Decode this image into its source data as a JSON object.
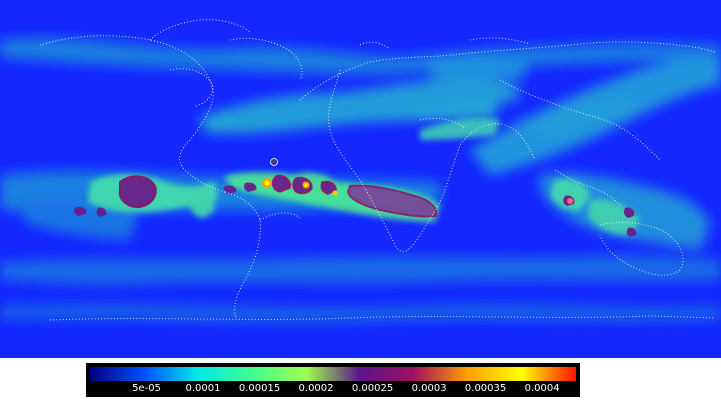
{
  "map": {
    "type": "global-field-map",
    "projection": "equirectangular",
    "background_color": "#1428ff",
    "coastline_color": "#ffffff",
    "coastline_style": "dotted"
  },
  "colorbar": {
    "orientation": "horizontal",
    "ticks": [
      "5e-05",
      "0.0001",
      "0.00015",
      "0.0002",
      "0.00025",
      "0.0003",
      "0.00035",
      "0.0004"
    ],
    "tick_values": [
      5e-05,
      0.0001,
      0.00015,
      0.0002,
      0.00025,
      0.0003,
      0.00035,
      0.0004
    ],
    "range": [
      0,
      0.00043
    ],
    "colors": [
      "#000080",
      "#0050ff",
      "#00e8e8",
      "#40ff90",
      "#a0ff50",
      "#5a148a",
      "#a01060",
      "#ffa000",
      "#ffff00",
      "#ff1000"
    ]
  }
}
